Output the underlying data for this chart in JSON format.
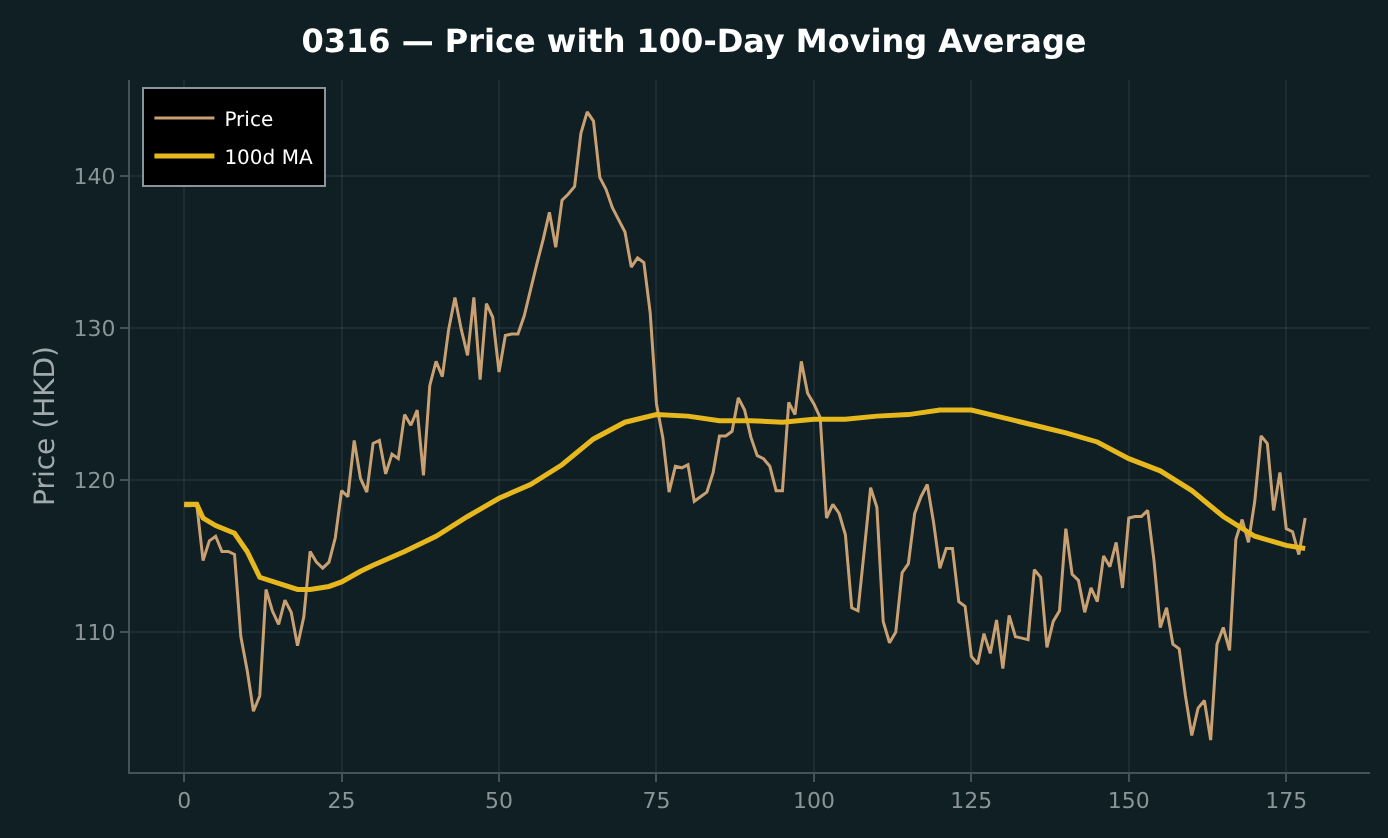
{
  "chart_data": {
    "type": "line",
    "title": "0316 — Price with 100-Day Moving Average",
    "ylabel": "Price (HKD)",
    "xlim": [
      -8.6,
      188.3
    ],
    "ylim": [
      100.8,
      146.3
    ],
    "xticks": [
      0,
      25,
      50,
      75,
      100,
      125,
      150,
      175
    ],
    "yticks": [
      110,
      120,
      130,
      140
    ],
    "grid": true,
    "legend": "top left",
    "series": [
      {
        "name": "Price",
        "color": "#c8a072",
        "x": [
          0,
          1,
          2,
          3,
          4,
          5,
          6,
          7,
          8,
          9,
          10,
          11,
          12,
          13,
          14,
          15,
          16,
          17,
          18,
          19,
          20,
          21,
          22,
          23,
          24,
          25,
          26,
          27,
          28,
          29,
          30,
          31,
          32,
          33,
          34,
          35,
          36,
          37,
          38,
          39,
          40,
          41,
          42,
          43,
          44,
          45,
          46,
          47,
          48,
          49,
          50,
          51,
          52,
          53,
          54,
          55,
          56,
          57,
          58,
          59,
          60,
          61,
          62,
          63,
          64,
          65,
          66,
          67,
          68,
          69,
          70,
          71,
          72,
          73,
          74,
          75,
          76,
          77,
          78,
          79,
          80,
          81,
          82,
          83,
          84,
          85,
          86,
          87,
          88,
          89,
          90,
          91,
          92,
          93,
          94,
          95,
          96,
          97,
          98,
          99,
          100,
          101,
          102,
          103,
          104,
          105,
          106,
          107,
          108,
          109,
          110,
          111,
          112,
          113,
          114,
          115,
          116,
          117,
          118,
          119,
          120,
          121,
          122,
          123,
          124,
          125,
          126,
          127,
          128,
          129,
          130,
          131,
          132,
          133,
          134,
          135,
          136,
          137,
          138,
          139,
          140,
          141,
          142,
          143,
          144,
          145,
          146,
          147,
          148,
          149,
          150,
          151,
          152,
          153,
          154,
          155,
          156,
          157,
          158,
          159,
          160,
          161,
          162,
          163,
          164,
          165,
          166,
          167,
          168,
          169,
          170,
          171,
          172,
          173,
          174,
          175,
          176,
          177,
          178
        ],
        "values": [
          118.3,
          118.3,
          118.4,
          114.7,
          116,
          116.3,
          115.3,
          115.3,
          115.1,
          109.7,
          107.5,
          104.8,
          105.8,
          112.8,
          111.4,
          110.5,
          112.1,
          111.3,
          109.1,
          111,
          115.3,
          114.6,
          114.2,
          114.6,
          116.2,
          119.3,
          118.9,
          122.6,
          120.1,
          119.2,
          122.4,
          122.6,
          120.4,
          121.7,
          121.4,
          124.3,
          123.6,
          124.6,
          120.3,
          126.2,
          127.8,
          126.8,
          129.9,
          132,
          129.9,
          128.2,
          132,
          126.6,
          131.6,
          130.7,
          127.1,
          129.5,
          129.6,
          129.6,
          130.8,
          132.5,
          134.2,
          135.8,
          137.6,
          135.3,
          138.4,
          138.8,
          139.3,
          142.8,
          144.2,
          143.6,
          139.9,
          139.1,
          137.9,
          137.1,
          136.3,
          134,
          134.6,
          134.3,
          131,
          125,
          122.8,
          119.2,
          120.9,
          120.8,
          121,
          118.6,
          118.9,
          119.2,
          120.5,
          122.9,
          122.9,
          123.2,
          125.4,
          124.6,
          122.8,
          121.6,
          121.4,
          120.9,
          119.3,
          119.3,
          125.1,
          124.3,
          127.8,
          125.7,
          125,
          124.1,
          117.5,
          118.4,
          117.8,
          116.4,
          111.6,
          111.4,
          115.4,
          119.5,
          118.2,
          110.7,
          109.3,
          110,
          113.9,
          114.5,
          117.8,
          118.9,
          119.7,
          117.2,
          114.2,
          115.5,
          115.5,
          112,
          111.7,
          108.4,
          107.9,
          109.9,
          108.6,
          110.8,
          107.6,
          111.1,
          109.7,
          109.6,
          109.5,
          114.1,
          113.6,
          109,
          110.7,
          111.4,
          116.8,
          113.8,
          113.4,
          111.3,
          112.9,
          112,
          115,
          114.3,
          115.9,
          112.9,
          117.5,
          117.6,
          117.6,
          118,
          114.7,
          110.3,
          111.6,
          109.2,
          108.9,
          105.8,
          103.2,
          105,
          105.5,
          102.9,
          109.2,
          110.3,
          108.8,
          116.1,
          117.4,
          115.9,
          118.6,
          122.9,
          122.4,
          118,
          120.5,
          116.8,
          116.6,
          115.1,
          117.5
        ]
      },
      {
        "name": "100d MA",
        "color": "#e6b81e",
        "x": [
          0,
          2,
          3,
          5,
          8,
          10,
          12,
          15,
          18,
          20,
          23,
          25,
          28,
          30,
          35,
          40,
          45,
          50,
          55,
          60,
          65,
          70,
          75,
          80,
          85,
          90,
          95,
          100,
          105,
          110,
          115,
          120,
          125,
          130,
          135,
          140,
          145,
          150,
          155,
          160,
          165,
          170,
          175,
          178
        ],
        "values": [
          118.4,
          118.4,
          117.5,
          117,
          116.5,
          115.3,
          113.6,
          113.2,
          112.8,
          112.8,
          113,
          113.3,
          114,
          114.4,
          115.3,
          116.3,
          117.6,
          118.8,
          119.7,
          121,
          122.7,
          123.8,
          124.3,
          124.2,
          123.9,
          123.9,
          123.8,
          124,
          124,
          124.2,
          124.3,
          124.6,
          124.6,
          124.1,
          123.6,
          123.1,
          122.5,
          121.4,
          120.6,
          119.3,
          117.6,
          116.3,
          115.7,
          115.5
        ]
      }
    ]
  }
}
